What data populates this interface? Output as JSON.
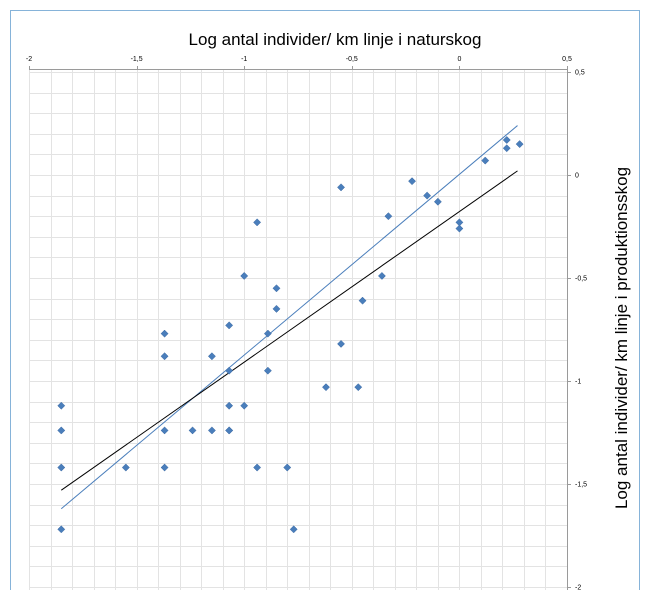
{
  "chart_data": {
    "type": "scatter",
    "title": "",
    "xlabel": "Log antal individer/ km linje i naturskog",
    "ylabel": "Log antal individer/ km linje i produktionsskog",
    "xlim": [
      -2,
      0.5
    ],
    "ylim": [
      -2,
      0.5
    ],
    "x_ticks": [
      -2,
      -1.5,
      -1,
      -0.5,
      0,
      0.5
    ],
    "x_tick_labels": [
      "-2",
      "-1,5",
      "-1",
      "-0,5",
      "0",
      "0,5"
    ],
    "y_ticks": [
      0.5,
      0,
      -0.5,
      -1,
      -1.5,
      -2
    ],
    "y_tick_labels": [
      "0,5",
      "0",
      "-0,5",
      "-1",
      "-1,5",
      "-2"
    ],
    "x_axis_position": "top",
    "y_axis_position": "right",
    "grid": true,
    "legend": "none",
    "colors": {
      "points": "#4a7ebb",
      "fit_blue": "#4a7ebb",
      "fit_black": "#000000",
      "grid": "#e3e3e3",
      "frame": "#86b3d9"
    },
    "series": [
      {
        "points": [
          [
            -1.85,
            -1.12
          ],
          [
            -1.85,
            -1.24
          ],
          [
            -1.85,
            -1.42
          ],
          [
            -1.85,
            -1.72
          ],
          [
            -1.55,
            -1.42
          ],
          [
            -1.37,
            -0.77
          ],
          [
            -1.37,
            -0.88
          ],
          [
            -1.37,
            -1.24
          ],
          [
            -1.37,
            -1.42
          ],
          [
            -1.24,
            -1.24
          ],
          [
            -1.15,
            -0.88
          ],
          [
            -1.15,
            -1.24
          ],
          [
            -1.07,
            -0.73
          ],
          [
            -1.07,
            -0.95
          ],
          [
            -1.07,
            -1.12
          ],
          [
            -1.07,
            -1.24
          ],
          [
            -1.07,
            -1.24
          ],
          [
            -1.0,
            -0.49
          ],
          [
            -1.0,
            -1.12
          ],
          [
            -0.94,
            -0.23
          ],
          [
            -0.94,
            -1.42
          ],
          [
            -0.89,
            -0.77
          ],
          [
            -0.89,
            -0.95
          ],
          [
            -0.85,
            -0.55
          ],
          [
            -0.85,
            -0.65
          ],
          [
            -0.8,
            -1.42
          ],
          [
            -0.77,
            -1.72
          ],
          [
            -0.62,
            -1.03
          ],
          [
            -0.55,
            -0.06
          ],
          [
            -0.55,
            -0.82
          ],
          [
            -0.47,
            -1.03
          ],
          [
            -0.45,
            -0.61
          ],
          [
            -0.36,
            -0.49
          ],
          [
            -0.33,
            -0.2
          ],
          [
            -0.22,
            -0.03
          ],
          [
            -0.15,
            -0.1
          ],
          [
            -0.1,
            -0.13
          ],
          [
            0.0,
            -0.23
          ],
          [
            0.0,
            -0.26
          ],
          [
            0.12,
            0.07
          ],
          [
            0.22,
            0.17
          ],
          [
            0.22,
            0.13
          ],
          [
            0.28,
            0.15
          ]
        ]
      }
    ],
    "trendlines": [
      {
        "color": "blue",
        "x": [
          -1.85,
          0.27
        ],
        "y": [
          -1.62,
          0.24
        ]
      },
      {
        "color": "black",
        "x": [
          -1.85,
          0.27
        ],
        "y": [
          -1.53,
          0.02
        ]
      }
    ]
  }
}
